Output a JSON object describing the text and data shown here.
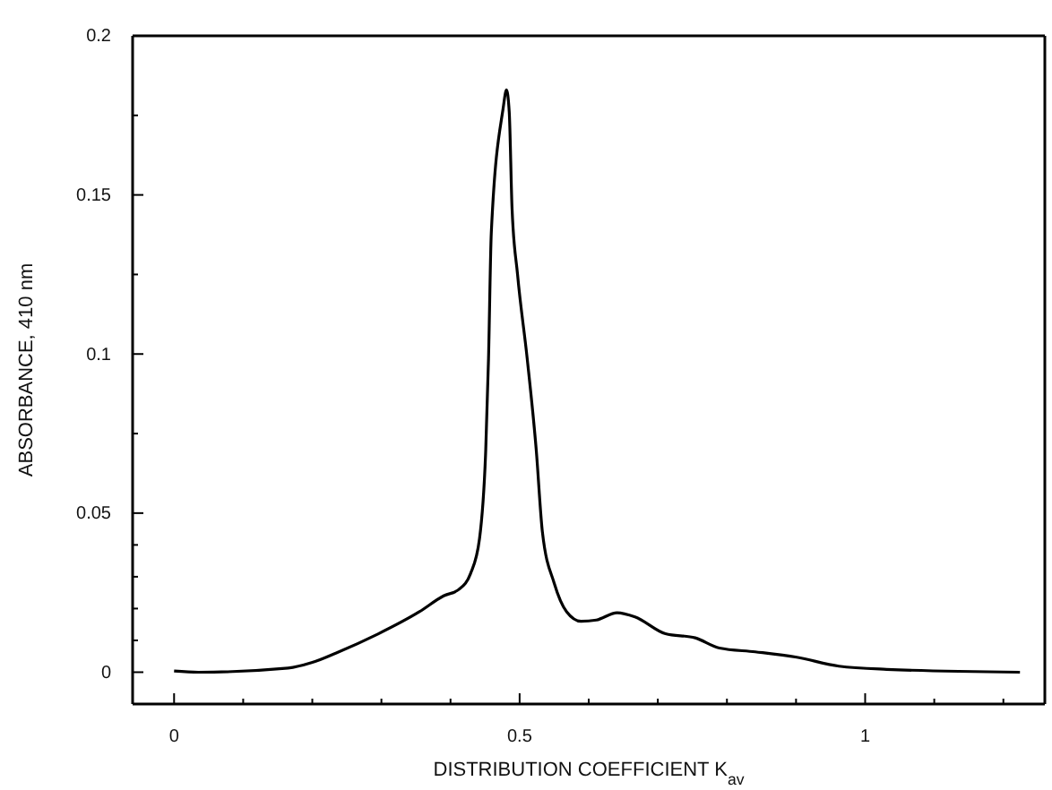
{
  "chart_data": {
    "type": "line",
    "xlabel": "DISTRIBUTION COEFFICIENT K$_{av}$",
    "ylabel": "ABSORBANCE, 410 nm",
    "xlim": [
      -0.06,
      1.26
    ],
    "ylim": [
      -0.01,
      0.2
    ],
    "xticks": [
      0,
      {
        "value": 0.1,
        "label": null
      },
      {
        "value": 0.2,
        "label": null
      },
      {
        "value": 0.3,
        "label": null
      },
      {
        "value": 0.4,
        "label": null
      },
      0.5,
      {
        "value": 0.6,
        "label": null
      },
      {
        "value": 0.7,
        "label": null
      },
      {
        "value": 0.8,
        "label": null
      },
      {
        "value": 0.9,
        "label": null
      },
      1,
      {
        "value": 1.1,
        "label": null
      },
      {
        "value": 1.2,
        "label": null
      }
    ],
    "yticks": [
      0,
      {
        "value": 0.01,
        "label": null
      },
      {
        "value": 0.02,
        "label": null
      },
      {
        "value": 0.03,
        "label": null
      },
      {
        "value": 0.04,
        "label": null
      },
      0.05,
      {
        "value": 0.075,
        "label": null
      },
      0.1,
      {
        "value": 0.125,
        "label": null
      },
      0.15,
      {
        "value": 0.175,
        "label": null
      },
      0.2
    ],
    "grid": false,
    "marker": "none",
    "line_style": "solid",
    "series": [
      {
        "color": "#000000",
        "x": [
          0,
          0.035,
          0.165,
          0.199,
          0.234,
          0.295,
          0.355,
          0.39,
          0.412,
          0.429,
          0.442,
          0.451,
          0.455,
          0.459,
          0.476,
          0.481,
          0.485,
          0.489,
          0.497,
          0.511,
          0.524,
          0.533,
          0.55,
          0.568,
          0.589,
          0.611,
          0.641,
          0.667,
          0.711,
          0.754,
          0.789,
          0.841,
          0.901,
          0.962,
          1.031,
          1.224
        ],
        "values": [
          0.0004,
          0,
          0.0013,
          0.003,
          0.006,
          0.012,
          0.019,
          0.024,
          0.026,
          0.031,
          0.042,
          0.07,
          0.0985,
          0.138,
          0.177,
          0.183,
          0.176,
          0.146,
          0.125,
          0.0985,
          0.07,
          0.044,
          0.028,
          0.019,
          0.016,
          0.0164,
          0.0187,
          0.0174,
          0.0121,
          0.0108,
          0.0076,
          0.0064,
          0.0047,
          0.0019,
          0.0009,
          0
        ]
      }
    ]
  }
}
